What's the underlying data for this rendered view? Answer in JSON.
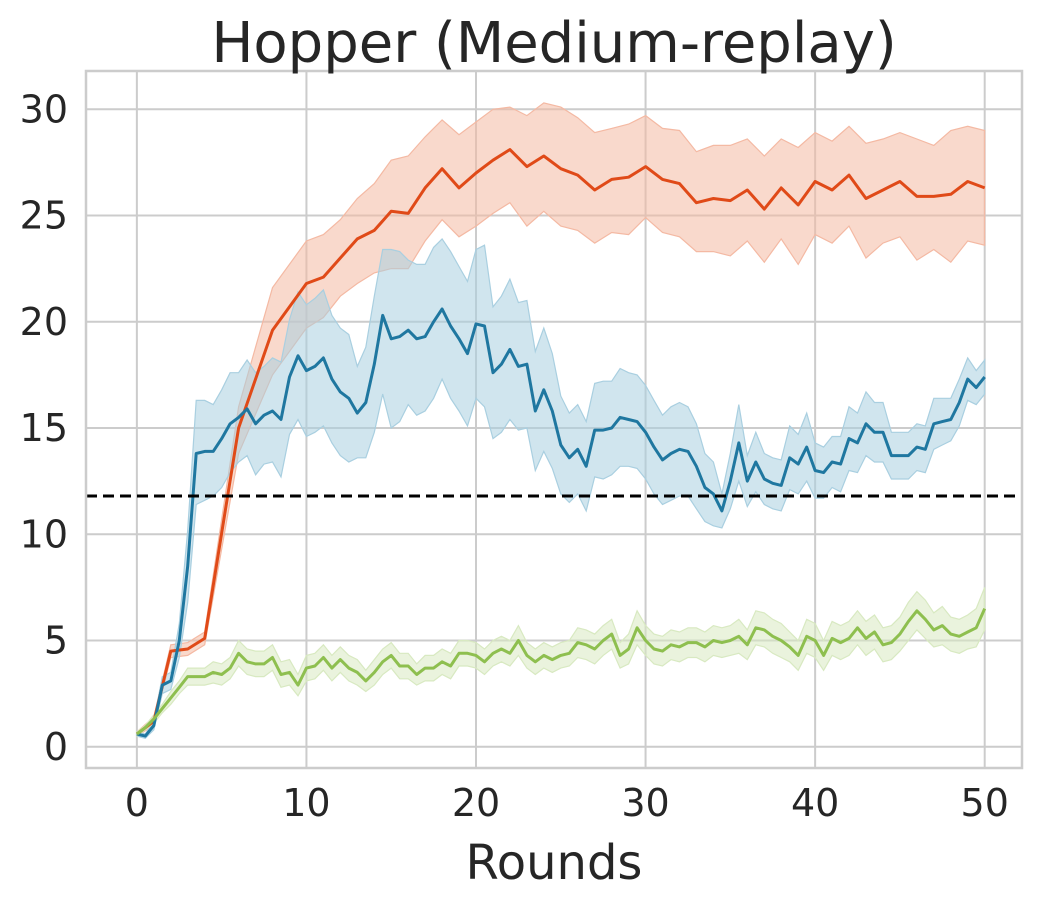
{
  "chart_data": {
    "type": "line",
    "title": "Hopper (Medium-replay)",
    "xlabel": "Rounds",
    "ylabel": "",
    "xlim": [
      -3,
      52.2
    ],
    "ylim": [
      -1,
      31.8
    ],
    "xticks": [
      "0",
      "10",
      "20",
      "30",
      "40",
      "50"
    ],
    "yticks": [
      "0",
      "5",
      "10",
      "15",
      "20",
      "25",
      "30"
    ],
    "grid": true,
    "reference_line": {
      "y": 11.8,
      "style": "dashed",
      "color": "#000000"
    },
    "x": [
      0,
      0.5,
      1,
      1.5,
      2,
      2.5,
      3,
      3.5,
      4,
      4.5,
      5,
      5.5,
      6,
      6.5,
      7,
      7.5,
      8,
      8.5,
      9,
      9.5,
      10,
      10.5,
      11,
      11.5,
      12,
      12.5,
      13,
      13.5,
      14,
      14.5,
      15,
      15.5,
      16,
      16.5,
      17,
      17.5,
      18,
      18.5,
      19,
      19.5,
      20,
      20.5,
      21,
      21.5,
      22,
      22.5,
      23,
      23.5,
      24,
      24.5,
      25,
      25.5,
      26,
      26.5,
      27,
      27.5,
      28,
      28.5,
      29,
      29.5,
      30,
      30.5,
      31,
      31.5,
      32,
      32.5,
      33,
      33.5,
      34,
      34.5,
      35,
      35.5,
      36,
      36.5,
      37,
      37.5,
      38,
      38.5,
      39,
      39.5,
      40,
      40.5,
      41,
      41.5,
      42,
      42.5,
      43,
      43.5,
      44,
      44.5,
      45,
      45.5,
      46,
      46.5,
      47,
      47.5,
      48,
      48.5,
      49,
      49.5,
      50
    ],
    "series": [
      {
        "color": "#e04a18",
        "fill": "#f4b9a3",
        "x": [
          0,
          1,
          2,
          3,
          4,
          6,
          8,
          10,
          11,
          12,
          13,
          14,
          15,
          16,
          17,
          18,
          19,
          20,
          21,
          22,
          23,
          24,
          25,
          26,
          27,
          28,
          29,
          30,
          31,
          32,
          33,
          34,
          35,
          36,
          37,
          38,
          39,
          40,
          41,
          42,
          43,
          44,
          45,
          46,
          47,
          48,
          49,
          50
        ],
        "values": [
          0.6,
          1.2,
          4.5,
          4.6,
          5.1,
          15.0,
          19.6,
          21.8,
          22.1,
          23.0,
          23.9,
          24.3,
          25.2,
          25.1,
          26.3,
          27.2,
          26.3,
          27.0,
          27.6,
          28.1,
          27.3,
          27.8,
          27.2,
          26.9,
          26.2,
          26.7,
          26.8,
          27.3,
          26.7,
          26.5,
          25.6,
          25.8,
          25.7,
          26.2,
          25.3,
          26.3,
          25.5,
          26.6,
          26.2,
          26.9,
          25.8,
          26.2,
          26.6,
          25.9,
          25.9,
          26.0,
          26.6,
          26.3
        ],
        "lower": [
          0.5,
          1.0,
          4.2,
          4.3,
          4.8,
          13.8,
          17.5,
          19.7,
          20.2,
          21.2,
          21.8,
          22.3,
          22.5,
          22.5,
          23.8,
          24.8,
          24.0,
          24.5,
          25.1,
          25.6,
          24.5,
          25.2,
          24.5,
          24.3,
          23.7,
          24.2,
          24.1,
          24.9,
          24.2,
          24.0,
          23.3,
          23.3,
          23.1,
          23.8,
          22.8,
          23.9,
          22.7,
          24.1,
          23.7,
          24.5,
          23.0,
          23.7,
          24.0,
          22.9,
          23.4,
          22.8,
          23.8,
          23.6
        ],
        "upper": [
          0.7,
          1.4,
          4.8,
          4.9,
          5.4,
          16.0,
          21.6,
          23.8,
          24.1,
          24.8,
          25.8,
          26.5,
          27.6,
          27.8,
          28.7,
          29.5,
          28.8,
          29.4,
          30.0,
          30.1,
          29.7,
          30.3,
          30.1,
          29.6,
          28.9,
          29.1,
          29.3,
          29.7,
          29.1,
          29.0,
          28.0,
          28.3,
          28.3,
          28.6,
          27.8,
          28.6,
          28.2,
          28.9,
          28.5,
          29.2,
          28.4,
          28.6,
          28.9,
          28.6,
          28.3,
          29.0,
          29.2,
          29.0
        ]
      },
      {
        "color": "#1f77a0",
        "fill": "#a9cfe0",
        "x": [
          0,
          0.5,
          1,
          1.5,
          2,
          2.5,
          3,
          3.5,
          4,
          4.5,
          5,
          5.5,
          6,
          6.5,
          7,
          7.5,
          8,
          8.5,
          9,
          9.5,
          10,
          10.5,
          11,
          11.5,
          12,
          12.5,
          13,
          13.5,
          14,
          14.5,
          15,
          15.5,
          16,
          16.5,
          17,
          17.5,
          18,
          18.5,
          19,
          19.5,
          20,
          20.5,
          21,
          21.5,
          22,
          22.5,
          23,
          23.5,
          24,
          24.5,
          25,
          25.5,
          26,
          26.5,
          27,
          27.5,
          28,
          28.5,
          29,
          29.5,
          30,
          30.5,
          31,
          31.5,
          32,
          32.5,
          33,
          33.5,
          34,
          34.5,
          35,
          35.5,
          36,
          36.5,
          37,
          37.5,
          38,
          38.5,
          39,
          39.5,
          40,
          40.5,
          41,
          41.5,
          42,
          42.5,
          43,
          43.5,
          44,
          44.5,
          45,
          45.5,
          46,
          46.5,
          47,
          47.5,
          48,
          48.5,
          49,
          49.5,
          50
        ],
        "values": [
          0.6,
          0.5,
          1.0,
          2.9,
          3.1,
          5.0,
          8.5,
          13.8,
          13.9,
          13.9,
          14.5,
          15.2,
          15.5,
          15.9,
          15.2,
          15.6,
          15.8,
          15.4,
          17.4,
          18.4,
          17.7,
          17.9,
          18.3,
          17.3,
          16.7,
          16.4,
          15.7,
          16.2,
          18.0,
          20.3,
          19.2,
          19.3,
          19.6,
          19.2,
          19.3,
          20.0,
          20.6,
          19.8,
          19.2,
          18.5,
          19.9,
          19.8,
          17.6,
          18.0,
          18.7,
          17.9,
          18.0,
          15.8,
          16.8,
          15.8,
          14.2,
          13.6,
          14.0,
          13.2,
          14.9,
          14.9,
          15.0,
          15.5,
          15.4,
          15.3,
          14.8,
          14.1,
          13.5,
          13.8,
          14.0,
          13.9,
          13.2,
          12.2,
          11.9,
          11.1,
          12.5,
          14.3,
          12.5,
          13.4,
          12.6,
          12.4,
          12.3,
          13.6,
          13.3,
          14.1,
          13.0,
          12.9,
          13.4,
          13.3,
          14.5,
          14.3,
          15.2,
          14.8,
          14.8,
          13.7,
          13.7,
          13.7,
          14.1,
          14.0,
          15.2,
          15.3,
          15.4,
          16.2,
          17.3,
          16.9,
          17.4
        ],
        "lower": [
          0.5,
          0.4,
          0.8,
          2.5,
          2.7,
          4.2,
          6.8,
          11.4,
          11.6,
          11.8,
          12.2,
          12.9,
          13.4,
          13.7,
          12.8,
          13.3,
          13.4,
          12.7,
          14.7,
          15.4,
          14.6,
          14.8,
          15.1,
          14.3,
          13.7,
          13.4,
          13.6,
          13.6,
          14.8,
          16.6,
          15.0,
          15.3,
          16.1,
          15.6,
          15.8,
          16.4,
          17.3,
          16.4,
          15.8,
          15.1,
          16.4,
          16.0,
          14.5,
          14.8,
          15.4,
          14.9,
          15.0,
          13.0,
          13.9,
          13.1,
          11.9,
          11.5,
          11.9,
          11.1,
          12.7,
          12.6,
          12.8,
          13.2,
          13.2,
          13.1,
          12.6,
          11.9,
          11.4,
          11.6,
          11.8,
          11.8,
          11.2,
          10.6,
          10.4,
          10.3,
          11.2,
          12.5,
          11.3,
          12.0,
          11.4,
          11.2,
          11.1,
          12.1,
          11.9,
          12.5,
          11.7,
          11.7,
          12.2,
          12.0,
          13.0,
          12.9,
          13.7,
          13.4,
          13.4,
          12.6,
          12.6,
          12.6,
          13.0,
          12.9,
          14.0,
          14.2,
          14.4,
          15.1,
          16.3,
          16.1,
          16.6
        ],
        "upper": [
          0.7,
          0.6,
          1.2,
          3.3,
          3.5,
          5.8,
          10.2,
          16.3,
          16.3,
          16.1,
          16.8,
          17.6,
          17.6,
          18.2,
          17.6,
          17.9,
          18.3,
          18.1,
          20.1,
          21.4,
          20.8,
          21.1,
          21.5,
          20.3,
          19.7,
          19.4,
          17.9,
          18.8,
          21.2,
          23.4,
          23.4,
          23.3,
          22.9,
          22.7,
          22.7,
          23.5,
          23.9,
          23.3,
          22.6,
          21.9,
          23.4,
          23.6,
          20.7,
          21.2,
          22.0,
          20.9,
          21.0,
          18.6,
          19.7,
          18.5,
          16.5,
          15.7,
          16.1,
          15.3,
          17.1,
          17.2,
          17.2,
          17.8,
          17.6,
          17.5,
          17.0,
          16.3,
          15.6,
          16.0,
          16.2,
          16.0,
          15.2,
          13.8,
          13.4,
          11.9,
          13.8,
          16.1,
          13.7,
          14.8,
          13.8,
          13.6,
          13.5,
          15.1,
          14.7,
          15.7,
          14.3,
          14.1,
          14.6,
          14.6,
          16.0,
          15.7,
          16.7,
          16.2,
          16.2,
          14.8,
          14.8,
          14.8,
          15.2,
          15.1,
          16.4,
          16.4,
          16.4,
          17.3,
          18.3,
          17.7,
          18.2
        ]
      },
      {
        "color": "#8ebf4f",
        "fill": "#d8e9c1",
        "x": [
          0,
          0.5,
          1,
          1.5,
          2,
          2.5,
          3,
          3.5,
          4,
          4.5,
          5,
          5.5,
          6,
          6.5,
          7,
          7.5,
          8,
          8.5,
          9,
          9.5,
          10,
          10.5,
          11,
          11.5,
          12,
          12.5,
          13,
          13.5,
          14,
          14.5,
          15,
          15.5,
          16,
          16.5,
          17,
          17.5,
          18,
          18.5,
          19,
          19.5,
          20,
          20.5,
          21,
          21.5,
          22,
          22.5,
          23,
          23.5,
          24,
          24.5,
          25,
          25.5,
          26,
          26.5,
          27,
          27.5,
          28,
          28.5,
          29,
          29.5,
          30,
          30.5,
          31,
          31.5,
          32,
          32.5,
          33,
          33.5,
          34,
          34.5,
          35,
          35.5,
          36,
          36.5,
          37,
          37.5,
          38,
          38.5,
          39,
          39.5,
          40,
          40.5,
          41,
          41.5,
          42,
          42.5,
          43,
          43.5,
          44,
          44.5,
          45,
          45.5,
          46,
          46.5,
          47,
          47.5,
          48,
          48.5,
          49,
          49.5,
          50
        ],
        "values": [
          0.6,
          0.9,
          1.3,
          1.8,
          2.3,
          2.8,
          3.3,
          3.3,
          3.3,
          3.5,
          3.4,
          3.7,
          4.4,
          4.0,
          3.9,
          3.9,
          4.2,
          3.4,
          3.5,
          2.9,
          3.7,
          3.8,
          4.2,
          3.7,
          4.1,
          3.7,
          3.5,
          3.1,
          3.5,
          4.0,
          4.3,
          3.8,
          3.8,
          3.4,
          3.7,
          3.7,
          4.0,
          3.8,
          4.4,
          4.4,
          4.3,
          4.0,
          4.4,
          4.6,
          4.4,
          5.0,
          4.3,
          4.0,
          4.3,
          4.1,
          4.3,
          4.4,
          4.9,
          4.8,
          4.6,
          5.0,
          5.3,
          4.3,
          4.6,
          5.6,
          5.0,
          4.6,
          4.5,
          4.8,
          4.7,
          4.9,
          4.9,
          4.7,
          5.0,
          4.9,
          5.0,
          5.2,
          4.8,
          5.6,
          5.5,
          5.2,
          5.0,
          4.7,
          4.3,
          5.2,
          5.0,
          4.3,
          5.1,
          4.9,
          5.1,
          5.6,
          5.1,
          5.4,
          4.8,
          4.9,
          5.3,
          5.9,
          6.4,
          6.0,
          5.5,
          5.7,
          5.3,
          5.2,
          5.4,
          5.6,
          6.5
        ],
        "lower": [
          0.5,
          0.8,
          1.1,
          1.6,
          2.0,
          2.5,
          2.9,
          2.9,
          2.9,
          3.0,
          2.9,
          3.2,
          3.8,
          3.4,
          3.3,
          3.3,
          3.6,
          2.8,
          2.9,
          2.4,
          3.1,
          3.2,
          3.6,
          3.1,
          3.5,
          3.1,
          2.9,
          2.6,
          2.9,
          3.4,
          3.7,
          3.2,
          3.2,
          2.9,
          3.1,
          3.1,
          3.4,
          3.2,
          3.8,
          3.8,
          3.7,
          3.4,
          3.8,
          4.0,
          3.8,
          4.3,
          3.7,
          3.4,
          3.7,
          3.5,
          3.7,
          3.8,
          4.2,
          4.1,
          3.9,
          4.3,
          4.6,
          3.7,
          3.9,
          4.8,
          4.3,
          3.9,
          3.8,
          4.1,
          4.0,
          4.2,
          4.2,
          4.0,
          4.3,
          4.2,
          4.3,
          4.4,
          4.1,
          4.8,
          4.7,
          4.4,
          4.2,
          4.0,
          3.6,
          4.4,
          4.2,
          3.6,
          4.3,
          4.1,
          4.3,
          4.8,
          4.3,
          4.6,
          4.0,
          4.1,
          4.5,
          5.0,
          5.5,
          5.1,
          4.7,
          4.8,
          4.5,
          4.4,
          4.6,
          4.7,
          5.5
        ],
        "upper": [
          0.7,
          1.0,
          1.5,
          2.0,
          2.6,
          3.1,
          3.7,
          3.7,
          3.7,
          4.0,
          3.9,
          4.2,
          5.0,
          4.6,
          4.5,
          4.5,
          4.8,
          4.0,
          4.1,
          3.4,
          4.3,
          4.4,
          4.8,
          4.3,
          4.7,
          4.3,
          4.1,
          3.6,
          4.1,
          4.6,
          4.9,
          4.4,
          4.4,
          3.9,
          4.3,
          4.3,
          4.6,
          4.4,
          5.0,
          5.0,
          4.9,
          4.6,
          5.0,
          5.2,
          5.0,
          5.7,
          4.9,
          4.6,
          4.9,
          4.7,
          4.9,
          5.0,
          5.6,
          5.5,
          5.3,
          5.7,
          6.0,
          4.9,
          5.3,
          6.4,
          5.7,
          5.3,
          5.2,
          5.5,
          5.4,
          5.6,
          5.6,
          5.4,
          5.7,
          5.6,
          5.7,
          6.0,
          5.5,
          6.4,
          6.3,
          6.0,
          5.8,
          5.4,
          5.0,
          6.0,
          5.8,
          5.0,
          5.9,
          5.7,
          5.9,
          6.4,
          5.9,
          6.2,
          5.6,
          5.7,
          6.1,
          6.8,
          7.3,
          6.9,
          6.3,
          6.6,
          6.1,
          6.0,
          6.2,
          6.5,
          7.5
        ]
      }
    ]
  }
}
